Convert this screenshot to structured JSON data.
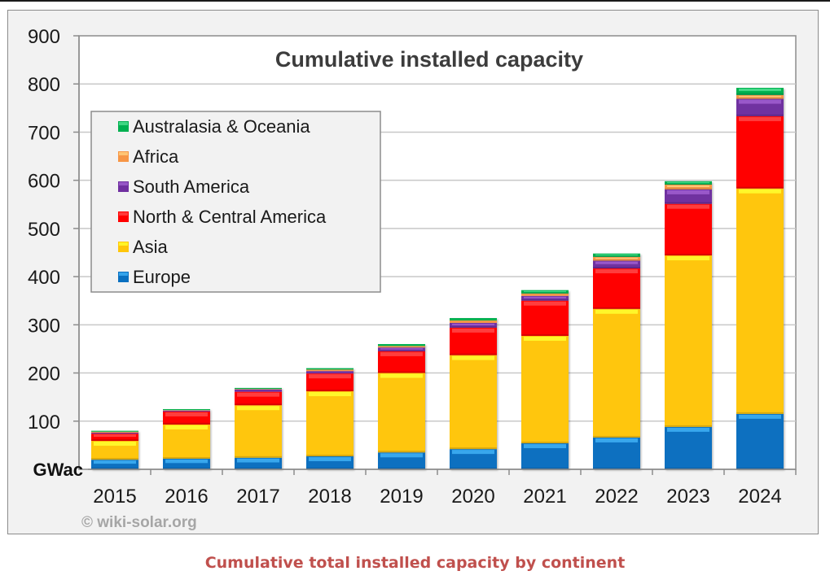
{
  "caption": "Cumulative total installed capacity by continent",
  "credit": "© wiki-solar.org",
  "chart_data": {
    "type": "bar",
    "stacked": true,
    "title": "Cumulative installed capacity",
    "xlabel": "",
    "ylabel": "GWac",
    "ylim": [
      0,
      900
    ],
    "yticks": [
      100,
      200,
      300,
      400,
      500,
      600,
      700,
      800,
      900
    ],
    "grid": true,
    "legend_position": "top-left",
    "categories": [
      "2015",
      "2016",
      "2017",
      "2018",
      "2019",
      "2020",
      "2021",
      "2022",
      "2023",
      "2024"
    ],
    "series": [
      {
        "name": "Europe",
        "color": "#0a70c0",
        "highlight": "#3fb0f5",
        "values": [
          20,
          22,
          24,
          27,
          35,
          42,
          54,
          66,
          88,
          115
        ]
      },
      {
        "name": "Asia",
        "color": "#ffc60a",
        "highlight": "#ffff30",
        "values": [
          39,
          71,
          109,
          135,
          165,
          195,
          223,
          267,
          356,
          468
        ]
      },
      {
        "name": "North & Central America",
        "color": "#ff0000",
        "highlight": "#ff4848",
        "values": [
          15,
          27,
          28,
          37,
          45,
          57,
          73,
          84,
          107,
          150
        ]
      },
      {
        "name": "South America",
        "color": "#7030a0",
        "highlight": "#a060d0",
        "values": [
          2,
          2,
          5,
          5,
          8,
          10,
          10,
          16,
          30,
          36
        ]
      },
      {
        "name": "Africa",
        "color": "#f79646",
        "highlight": "#ffd080",
        "values": [
          2,
          1,
          1,
          3,
          3,
          5,
          5,
          8,
          10,
          8
        ]
      },
      {
        "name": "Australasia & Oceania",
        "color": "#00b050",
        "highlight": "#50e090",
        "values": [
          2,
          2,
          2,
          3,
          4,
          5,
          7,
          7,
          7,
          15
        ]
      }
    ],
    "legend_order": [
      "Australasia & Oceania",
      "Africa",
      "South America",
      "North & Central America",
      "Asia",
      "Europe"
    ]
  }
}
